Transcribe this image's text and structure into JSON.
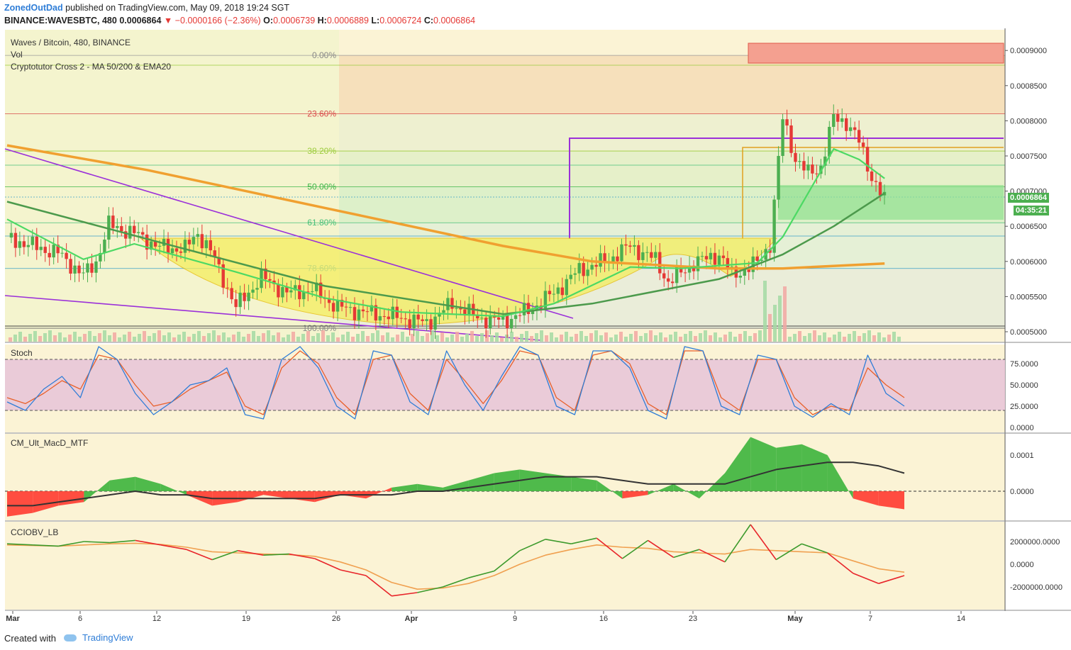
{
  "header": {
    "author": "ZonedOutDad",
    "published": "published on TradingView.com, May 09, 2018 19:24 SGT",
    "symbol_line": "BINANCE:WAVESBTC, 480",
    "last": "0.0006864",
    "change_arrow": "▼",
    "change": "−0.0000166 (−2.36%)",
    "o_label": "O:",
    "o": "0.0006739",
    "h_label": "H:",
    "h": "0.0006889",
    "l_label": "L:",
    "l": "0.0006724",
    "c_label": "C:",
    "c": "0.0006864"
  },
  "panes": {
    "main": {
      "title": "Waves / Bitcoin, 480, BINANCE",
      "vol_label": "Vol",
      "ma_label": "Cryptotutor Cross 2 - MA 50/200 & EMA20",
      "price_tag": "0.0006864",
      "timer_tag": "04:35:21",
      "y_ticks": [
        "0.0009000",
        "0.0008500",
        "0.0008000",
        "0.0007500",
        "0.0007000",
        "0.0006500",
        "0.0006000",
        "0.0005500",
        "0.0005000"
      ],
      "fib_labels": [
        "0.00%",
        "23.60%",
        "38.20%",
        "50.00%",
        "61.80%",
        "78.60%",
        "100.00%"
      ]
    },
    "stoch": {
      "title": "Stoch",
      "y_ticks": [
        "75.0000",
        "50.0000",
        "25.0000",
        "0.0000"
      ]
    },
    "macd": {
      "title": "CM_Ult_MacD_MTF",
      "y_ticks": [
        "0.0001",
        "0.0000"
      ]
    },
    "cciobv": {
      "title": "CCIOBV_LB",
      "y_ticks": [
        "2000000.0000",
        "0.0000",
        "-2000000.0000"
      ]
    }
  },
  "x_axis": [
    "Mar",
    "6",
    "12",
    "19",
    "26",
    "Apr",
    "9",
    "16",
    "23",
    "May",
    "7",
    "14"
  ],
  "footer": {
    "created": "Created with",
    "brand": "TradingView"
  },
  "colors": {
    "up": "#4caf50",
    "down": "#e53935",
    "ema20": "#4cd964",
    "ma50": "#4c9a4c",
    "ma200": "#f0a030",
    "trend": "#9b30d9",
    "stoch_k": "#2e7dd7",
    "stoch_d": "#e8602a"
  },
  "chart_data": {
    "type": "candlestick",
    "title": "Waves / Bitcoin, 480, BINANCE",
    "x_range": [
      "2018-03-01",
      "2018-05-16"
    ],
    "ylim": [
      0.00048,
      0.00092
    ],
    "fib_levels": [
      {
        "label": "0.00%",
        "price": 0.000893
      },
      {
        "label": "23.60%",
        "price": 0.00081
      },
      {
        "label": "38.20%",
        "price": 0.000757
      },
      {
        "label": "50.00%",
        "price": 0.000706
      },
      {
        "label": "61.80%",
        "price": 0.000655
      },
      {
        "label": "78.60%",
        "price": 0.00059
      },
      {
        "label": "100.00%",
        "price": 0.000505
      }
    ],
    "close_series": [
      [
        "2018-03-01",
        0.000634
      ],
      [
        "2018-03-03",
        0.000622
      ],
      [
        "2018-03-05",
        0.000612
      ],
      [
        "2018-03-07",
        0.00058
      ],
      [
        "2018-03-08",
        0.0006
      ],
      [
        "2018-03-09",
        0.000652
      ],
      [
        "2018-03-11",
        0.00064
      ],
      [
        "2018-03-13",
        0.00062
      ],
      [
        "2018-03-15",
        0.000618
      ],
      [
        "2018-03-16",
        0.00064
      ],
      [
        "2018-03-17",
        0.000615
      ],
      [
        "2018-03-19",
        0.000535
      ],
      [
        "2018-03-21",
        0.000578
      ],
      [
        "2018-03-23",
        0.000555
      ],
      [
        "2018-03-25",
        0.00056
      ],
      [
        "2018-03-27",
        0.000535
      ],
      [
        "2018-03-29",
        0.000528
      ],
      [
        "2018-04-01",
        0.00052
      ],
      [
        "2018-04-03",
        0.000512
      ],
      [
        "2018-04-05",
        0.00054
      ],
      [
        "2018-04-07",
        0.00052
      ],
      [
        "2018-04-09",
        0.000515
      ],
      [
        "2018-04-11",
        0.00053
      ],
      [
        "2018-04-13",
        0.000555
      ],
      [
        "2018-04-15",
        0.000588
      ],
      [
        "2018-04-17",
        0.0006
      ],
      [
        "2018-04-19",
        0.000622
      ],
      [
        "2018-04-21",
        0.000602
      ],
      [
        "2018-04-22",
        0.00057
      ],
      [
        "2018-04-24",
        0.000598
      ],
      [
        "2018-04-26",
        0.00061
      ],
      [
        "2018-04-27",
        0.00058
      ],
      [
        "2018-04-29",
        0.000598
      ],
      [
        "2018-04-30",
        0.000625
      ],
      [
        "2018-05-01",
        0.000805
      ],
      [
        "2018-05-02",
        0.000745
      ],
      [
        "2018-05-03",
        0.000725
      ],
      [
        "2018-05-04",
        0.000735
      ],
      [
        "2018-05-05",
        0.000805
      ],
      [
        "2018-05-06",
        0.000798
      ],
      [
        "2018-05-07",
        0.00077
      ],
      [
        "2018-05-08",
        0.00072
      ],
      [
        "2018-05-09",
        0.000686
      ]
    ],
    "ema20": [
      [
        "2018-03-01",
        0.00066
      ],
      [
        "2018-03-07",
        0.000603
      ],
      [
        "2018-03-11",
        0.000625
      ],
      [
        "2018-03-19",
        0.000585
      ],
      [
        "2018-03-26",
        0.000548
      ],
      [
        "2018-04-01",
        0.000528
      ],
      [
        "2018-04-09",
        0.000522
      ],
      [
        "2018-04-13",
        0.00054
      ],
      [
        "2018-04-19",
        0.000592
      ],
      [
        "2018-04-23",
        0.00059
      ],
      [
        "2018-04-29",
        0.000598
      ],
      [
        "2018-05-01",
        0.000635
      ],
      [
        "2018-05-05",
        0.00076
      ],
      [
        "2018-05-07",
        0.000745
      ],
      [
        "2018-05-09",
        0.000718
      ]
    ],
    "ma50": [
      [
        "2018-03-01",
        0.000685
      ],
      [
        "2018-03-12",
        0.000632
      ],
      [
        "2018-03-26",
        0.000565
      ],
      [
        "2018-04-09",
        0.000525
      ],
      [
        "2018-04-16",
        0.00054
      ],
      [
        "2018-04-26",
        0.000575
      ],
      [
        "2018-05-01",
        0.00061
      ],
      [
        "2018-05-05",
        0.00065
      ],
      [
        "2018-05-09",
        0.000697
      ]
    ],
    "ma200": [
      [
        "2018-03-01",
        0.000765
      ],
      [
        "2018-03-12",
        0.00073
      ],
      [
        "2018-03-26",
        0.000676
      ],
      [
        "2018-04-09",
        0.000622
      ],
      [
        "2018-04-16",
        0.0006
      ],
      [
        "2018-04-26",
        0.00059
      ],
      [
        "2018-05-01",
        0.00059
      ],
      [
        "2018-05-09",
        0.000597
      ]
    ],
    "stoch": {
      "k": [
        30,
        20,
        45,
        60,
        35,
        95,
        80,
        40,
        15,
        30,
        50,
        55,
        70,
        15,
        10,
        80,
        95,
        70,
        25,
        10,
        90,
        85,
        30,
        15,
        90,
        50,
        20,
        60,
        95,
        85,
        25,
        15,
        90,
        90,
        70,
        20,
        10,
        95,
        90,
        25,
        15,
        85,
        80,
        25,
        12,
        28,
        15,
        85,
        40,
        25
      ],
      "d": [
        35,
        28,
        40,
        55,
        45,
        85,
        80,
        50,
        25,
        30,
        45,
        55,
        65,
        25,
        15,
        70,
        90,
        75,
        35,
        15,
        80,
        85,
        40,
        20,
        80,
        55,
        28,
        55,
        90,
        85,
        35,
        20,
        85,
        90,
        75,
        28,
        15,
        90,
        90,
        35,
        20,
        80,
        80,
        35,
        15,
        25,
        20,
        70,
        50,
        35
      ],
      "overbought": 80,
      "oversold": 20
    },
    "macd": {
      "hist": [
        -7e-05,
        -6e-05,
        -4e-05,
        -3e-05,
        3e-05,
        4e-05,
        2e-05,
        -1e-05,
        -4e-05,
        -3e-05,
        -1e-05,
        -2e-05,
        -3e-05,
        -1e-05,
        -2e-05,
        1e-05,
        2e-05,
        1e-05,
        3e-05,
        5e-05,
        6e-05,
        5e-05,
        4e-05,
        3e-05,
        -2e-05,
        -1e-05,
        2e-05,
        -2e-05,
        5e-05,
        0.00015,
        0.00012,
        0.00013,
        0.0001,
        -2e-05,
        -4e-05,
        -5e-05
      ],
      "signal": [
        -4e-05,
        -4e-05,
        -3e-05,
        -2e-05,
        -1e-05,
        0.0,
        -1e-05,
        -1e-05,
        -2e-05,
        -2e-05,
        -2e-05,
        -2e-05,
        -2e-05,
        -1e-05,
        -1e-05,
        -1e-05,
        0.0,
        0.0,
        1e-05,
        2e-05,
        3e-05,
        4e-05,
        4e-05,
        4e-05,
        3e-05,
        2e-05,
        2e-05,
        2e-05,
        2e-05,
        4e-05,
        6e-05,
        7e-05,
        8e-05,
        8e-05,
        7e-05,
        5e-05
      ]
    },
    "cciobv": {
      "cci": [
        1800000,
        1700000,
        1600000,
        2000000,
        1900000,
        2100000,
        1700000,
        1300000,
        400000,
        1200000,
        800000,
        900000,
        500000,
        -500000,
        -1000000,
        -2800000,
        -2500000,
        -2000000,
        -1200000,
        -600000,
        1200000,
        2200000,
        1800000,
        2300000,
        500000,
        2100000,
        600000,
        1300000,
        200000,
        3500000,
        400000,
        1800000,
        1000000,
        -800000,
        -1700000,
        -1000000
      ],
      "signal": [
        1700000,
        1650000,
        1600000,
        1700000,
        1800000,
        1850000,
        1750000,
        1500000,
        1100000,
        1000000,
        900000,
        850000,
        700000,
        200000,
        -500000,
        -1600000,
        -2200000,
        -2100000,
        -1700000,
        -1000000,
        0,
        800000,
        1300000,
        1700000,
        1500000,
        1400000,
        1100000,
        1000000,
        900000,
        1300000,
        1200000,
        1100000,
        1000000,
        300000,
        -400000,
        -700000
      ]
    }
  }
}
